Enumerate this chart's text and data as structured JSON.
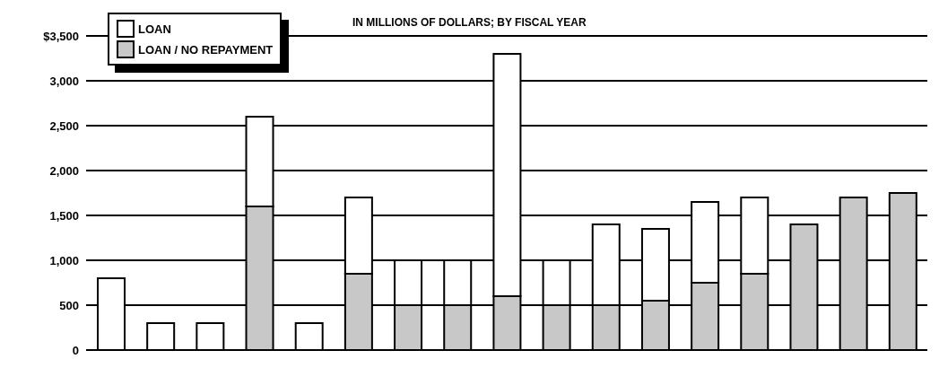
{
  "chart_data": {
    "type": "bar",
    "title": "IN MILLIONS OF DOLLARS; BY FISCAL YEAR",
    "stacked": true,
    "categories": [
      null,
      null,
      null,
      null,
      null,
      null,
      null,
      null,
      null,
      null,
      null,
      null,
      null,
      null,
      null,
      null,
      null
    ],
    "series": [
      {
        "name": "LOAN / NO REPAYMENT",
        "color": "#c8c8c8",
        "values": [
          0,
          0,
          0,
          1600,
          0,
          850,
          500,
          500,
          600,
          500,
          500,
          550,
          750,
          850,
          1400,
          1700,
          1750
        ]
      },
      {
        "name": "LOAN",
        "color": "#ffffff",
        "values": [
          800,
          300,
          300,
          1000,
          300,
          850,
          500,
          500,
          2700,
          500,
          900,
          800,
          900,
          850,
          0,
          0,
          0
        ]
      }
    ],
    "ylim": [
      0,
      3500
    ],
    "yticks": [
      0,
      500,
      {
        "value": 1000,
        "label": "1,000"
      },
      {
        "value": 1500,
        "label": "1,500"
      },
      {
        "value": 2000,
        "label": "2,000"
      },
      {
        "value": 2500,
        "label": "2,500"
      },
      {
        "value": 3000,
        "label": "3,000"
      },
      {
        "value": 3500,
        "label": "$3,500"
      }
    ],
    "grid": "y",
    "legend": "top left"
  }
}
